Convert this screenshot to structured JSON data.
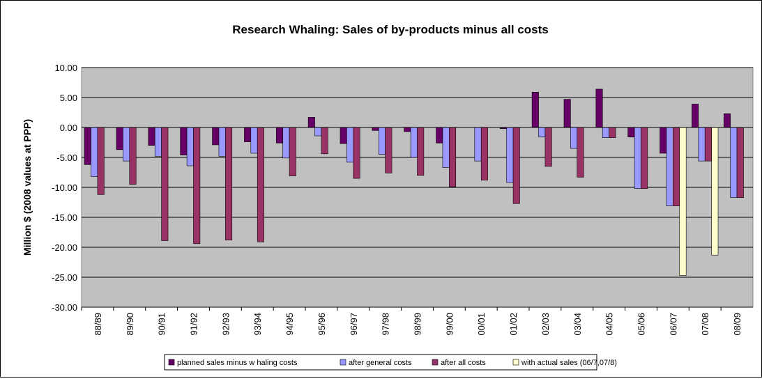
{
  "chart_data": {
    "type": "bar",
    "title": "Research Whaling: Sales of by-products minus all costs",
    "y_label": "Million $ (2008 values at PPP)",
    "categories": [
      "88/89",
      "89/90",
      "90/91",
      "91/92",
      "92/93",
      "93/94",
      "94/95",
      "95/96",
      "96/97",
      "97/98",
      "98/99",
      "99/00",
      "00/01",
      "01/02",
      "02/03",
      "03/04",
      "04/05",
      "05/06",
      "06/07",
      "07/08",
      "08/09"
    ],
    "series": [
      {
        "name": "planned sales minus w haling costs",
        "color": "#660066",
        "values": [
          -6.2,
          -3.7,
          -3.0,
          -4.6,
          -2.9,
          -2.4,
          -2.6,
          1.7,
          -2.7,
          -0.5,
          -0.7,
          -2.6,
          0,
          -0.2,
          5.9,
          4.7,
          6.4,
          -1.6,
          -4.3,
          3.9,
          2.3
        ]
      },
      {
        "name": "after general costs",
        "color": "#9999ff",
        "values": [
          -8.2,
          -5.6,
          -4.8,
          -6.4,
          -4.8,
          -4.3,
          -5.1,
          -1.4,
          -5.8,
          -4.5,
          -5.0,
          -6.7,
          -5.6,
          -9.2,
          -1.6,
          -3.5,
          -1.7,
          -10.2,
          -13.1,
          -5.6,
          -11.7
        ]
      },
      {
        "name": "after all costs",
        "color": "#993366",
        "values": [
          -11.2,
          -9.5,
          -18.9,
          -19.4,
          -18.8,
          -19.1,
          -8.1,
          -4.4,
          -8.5,
          -7.6,
          -8.0,
          -9.9,
          -8.8,
          -12.7,
          -6.5,
          -8.3,
          -1.7,
          -10.2,
          -13.1,
          -5.6,
          -11.7
        ]
      },
      {
        "name": "with actual sales (06/7,07/8)",
        "color": "#ffffcc",
        "values": [
          null,
          null,
          null,
          null,
          null,
          null,
          null,
          null,
          null,
          null,
          null,
          null,
          null,
          null,
          null,
          null,
          null,
          null,
          -24.7,
          -21.3,
          null
        ]
      }
    ],
    "ylim": [
      -30,
      10
    ],
    "yticks": [
      {
        "value": -30,
        "label": "-30.00"
      },
      {
        "value": -25,
        "label": "-25.00"
      },
      {
        "value": -20,
        "label": "-20.00"
      },
      {
        "value": -15,
        "label": "-15.00"
      },
      {
        "value": -10,
        "label": "-10.00"
      },
      {
        "value": -5,
        "label": "-5.00"
      },
      {
        "value": 0,
        "label": "0.00"
      },
      {
        "value": 5,
        "label": "5.00"
      },
      {
        "value": 10,
        "label": "10.00"
      }
    ],
    "grid": true,
    "legend": "bottom"
  }
}
